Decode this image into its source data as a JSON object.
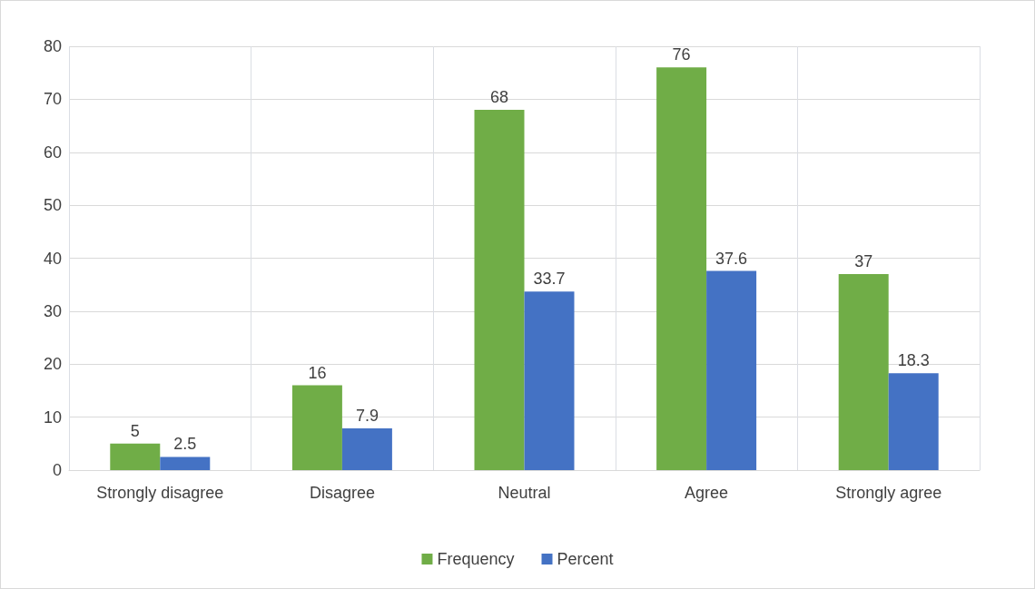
{
  "chart_data": {
    "type": "bar",
    "categories": [
      "Strongly disagree",
      "Disagree",
      "Neutral",
      "Agree",
      "Strongly agree"
    ],
    "series": [
      {
        "name": "Frequency",
        "color": "#70ad47",
        "values": [
          5,
          16,
          68,
          76,
          37
        ]
      },
      {
        "name": "Percent",
        "color": "#4472c4",
        "values": [
          2.5,
          7.9,
          33.7,
          37.6,
          18.3
        ]
      }
    ],
    "ylim": [
      0,
      80
    ],
    "yticks": [
      0,
      10,
      20,
      30,
      40,
      50,
      60,
      70,
      80
    ],
    "grid": true,
    "legend": "bottom",
    "data_labels": true
  }
}
